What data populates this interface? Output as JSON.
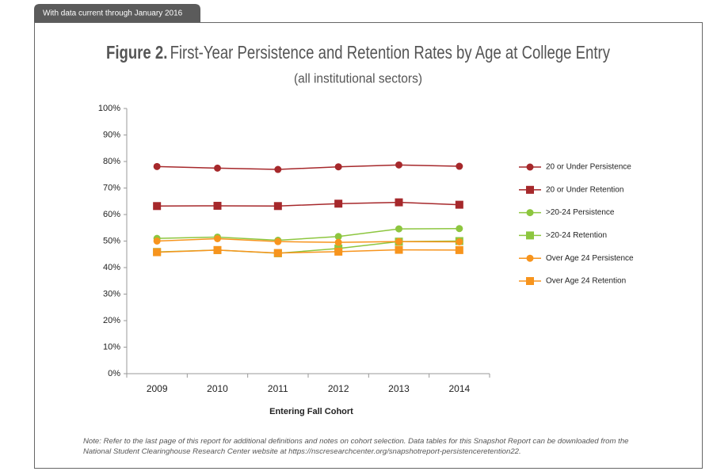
{
  "chart_data": {
    "type": "line",
    "tag": "With data current through January 2016",
    "figure_label": "Figure 2.",
    "title": "First-Year Persistence and Retention Rates by Age at College Entry",
    "subtitle": "(all institutional sectors)",
    "x_label": "Entering Fall Cohort",
    "categories": [
      "2009",
      "2010",
      "2011",
      "2012",
      "2013",
      "2014"
    ],
    "series": [
      {
        "name": "20 or Under Persistence",
        "color": "#a6282b",
        "marker": "circle",
        "values": [
          78.1,
          77.5,
          77.0,
          78.0,
          78.7,
          78.2
        ]
      },
      {
        "name": "20 or Under Retention",
        "color": "#a6282b",
        "marker": "square",
        "values": [
          63.2,
          63.3,
          63.2,
          64.1,
          64.6,
          63.7
        ]
      },
      {
        "name": ">20-24 Persistence",
        "color": "#8dc63f",
        "marker": "circle",
        "values": [
          51.0,
          51.5,
          50.3,
          51.7,
          54.6,
          54.7
        ]
      },
      {
        "name": ">20-24 Retention",
        "color": "#8dc63f",
        "marker": "square",
        "values": [
          45.9,
          46.6,
          45.4,
          47.2,
          49.8,
          50.0
        ]
      },
      {
        "name": "Over Age 24 Persistence",
        "color": "#f7941d",
        "marker": "circle",
        "values": [
          50.0,
          50.9,
          49.8,
          49.5,
          49.8,
          49.7
        ]
      },
      {
        "name": "Over Age 24 Retention",
        "color": "#f7941d",
        "marker": "square",
        "values": [
          45.8,
          46.6,
          45.5,
          46.0,
          46.7,
          46.6
        ]
      }
    ],
    "ylim": [
      0,
      100
    ],
    "yticks": [
      {
        "value": 0,
        "label": "0%"
      },
      {
        "value": 10,
        "label": "10%"
      },
      {
        "value": 20,
        "label": "20%"
      },
      {
        "value": 30,
        "label": "30%"
      },
      {
        "value": 40,
        "label": "40%"
      },
      {
        "value": 50,
        "label": "50%"
      },
      {
        "value": 60,
        "label": "60%"
      },
      {
        "value": 70,
        "label": "70%"
      },
      {
        "value": 80,
        "label": "80%"
      },
      {
        "value": 90,
        "label": "90%"
      },
      {
        "value": 100,
        "label": "100%"
      }
    ],
    "legend": "right",
    "note": "Note: Refer to the last page of this report for additional definitions and notes on cohort selection. Data tables for this Snapshot Report can be downloaded from the National Student Clearinghouse Research Center website at https://nscresearchcenter.org/snapshotreport-persistenceretention22."
  }
}
